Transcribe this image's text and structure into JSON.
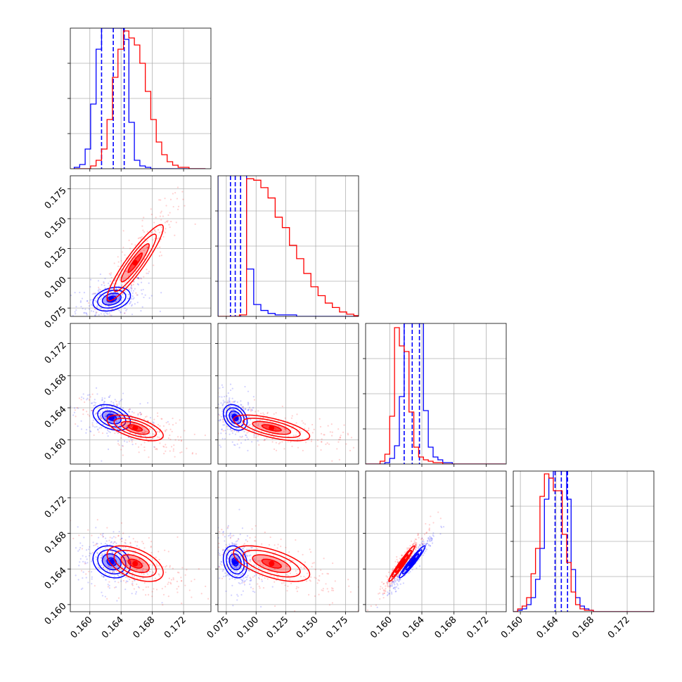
{
  "chart_data": {
    "type": "corner",
    "parameters": 4,
    "grid": true,
    "series": [
      {
        "color": "#0000ff"
      },
      {
        "color": "#ff0000"
      }
    ],
    "params": [
      {
        "range": [
          0.1575,
          0.1755
        ],
        "ticks": [
          0.16,
          0.164,
          0.168,
          0.172
        ],
        "ticklabels": [
          "0.160",
          "0.164",
          "0.168",
          "0.172"
        ]
      },
      {
        "range": [
          0.068,
          0.186
        ],
        "ticks": [
          0.075,
          0.1,
          0.125,
          0.15,
          0.175
        ],
        "ticklabels": [
          "0.075",
          "0.100",
          "0.125",
          "0.150",
          "0.175"
        ]
      },
      {
        "range": [
          0.157,
          0.1745
        ],
        "ticks": [
          0.16,
          0.164,
          0.168,
          0.172
        ],
        "ticklabels": [
          "0.160",
          "0.164",
          "0.168",
          "0.172"
        ]
      },
      {
        "range": [
          0.1592,
          0.175
        ],
        "ticks": [
          0.16,
          0.164,
          0.168,
          0.172
        ],
        "ticklabels": [
          "0.160",
          "0.164",
          "0.168",
          "0.172"
        ]
      }
    ],
    "histograms": [
      {
        "param": 0,
        "bins": [
          0.158,
          0.1587,
          0.1594,
          0.1601,
          0.1608,
          0.1615,
          0.1622,
          0.1629,
          0.1636,
          0.1643,
          0.165,
          0.1657,
          0.1664,
          0.1671,
          0.1678,
          0.1685,
          0.1692,
          0.1699,
          0.1706,
          0.1713,
          0.172,
          0.1727,
          0.1734,
          0.1741,
          0.1748
        ],
        "series": [
          {
            "name": "blue",
            "counts": [
              0.01,
              0.03,
              0.14,
              0.46,
              0.85,
              1.0,
              1.0,
              1.0,
              1.0,
              0.92,
              0.33,
              0.06,
              0.02,
              0.01,
              0,
              0,
              0,
              0,
              0,
              0,
              0,
              0,
              0,
              0
            ],
            "quantiles": [
              0.1615,
              0.163,
              0.1644
            ]
          },
          {
            "name": "red",
            "counts": [
              0,
              0,
              0,
              0.02,
              0.06,
              0.14,
              0.35,
              0.65,
              0.85,
              0.98,
              0.93,
              0.88,
              0.75,
              0.55,
              0.35,
              0.19,
              0.1,
              0.05,
              0.025,
              0.01,
              0.01,
              0,
              0,
              0
            ]
          }
        ],
        "ymax": 1.0
      },
      {
        "param": 1,
        "bins": [
          0.068,
          0.074,
          0.08,
          0.086,
          0.092,
          0.098,
          0.104,
          0.11,
          0.116,
          0.122,
          0.128,
          0.134,
          0.14,
          0.146,
          0.152,
          0.158,
          0.164,
          0.17,
          0.176,
          0.182,
          0.186
        ],
        "series": [
          {
            "name": "blue",
            "counts": [
              1.0,
              1.0,
              1.0,
              1.0,
              0.32,
              0.08,
              0.04,
              0.02,
              0.01,
              0.01,
              0.01,
              0,
              0,
              0,
              0,
              0,
              0,
              0,
              0,
              0
            ],
            "quantiles": [
              0.0785,
              0.0825,
              0.087
            ]
          },
          {
            "name": "red",
            "counts": [
              0,
              0,
              0,
              0.01,
              0.93,
              0.92,
              0.87,
              0.8,
              0.67,
              0.6,
              0.48,
              0.39,
              0.29,
              0.2,
              0.14,
              0.09,
              0.06,
              0.03,
              0.015,
              0.005
            ]
          }
        ],
        "ymax": 0.95
      },
      {
        "param": 2,
        "bins": [
          0.157,
          0.1576,
          0.1582,
          0.1588,
          0.1594,
          0.16,
          0.1606,
          0.1612,
          0.1618,
          0.1624,
          0.163,
          0.1636,
          0.1642,
          0.1648,
          0.1654,
          0.166,
          0.1666,
          0.1672,
          0.1678,
          0.1684,
          0.169,
          0.1696,
          0.1702,
          0.1708,
          0.1714,
          0.172,
          0.1726,
          0.1732,
          0.1738,
          0.1744
        ],
        "series": [
          {
            "name": "blue",
            "counts": [
              0,
              0,
              0,
              0,
              0.01,
              0.04,
              0.13,
              0.48,
              1.0,
              1.0,
              1.0,
              1.0,
              0.38,
              0.12,
              0.05,
              0.03,
              0.01,
              0.01,
              0,
              0,
              0,
              0,
              0,
              0,
              0,
              0,
              0,
              0,
              0
            ],
            "quantiles": [
              0.1618,
              0.1628,
              0.1637
            ]
          },
          {
            "name": "red",
            "counts": [
              0,
              0,
              0,
              0.02,
              0.07,
              0.34,
              0.97,
              0.84,
              0.8,
              0.37,
              0.12,
              0.05,
              0.03,
              0.02,
              0.01,
              0.01,
              0,
              0,
              0,
              0,
              0,
              0,
              0,
              0,
              0,
              0,
              0,
              0,
              0
            ]
          }
        ],
        "ymax": 1.0
      },
      {
        "param": 3,
        "bins": [
          0.1592,
          0.1597,
          0.1602,
          0.1607,
          0.1612,
          0.1617,
          0.1622,
          0.1627,
          0.1632,
          0.1637,
          0.1642,
          0.1647,
          0.1652,
          0.1657,
          0.1662,
          0.1667,
          0.1672,
          0.1677,
          0.1682,
          0.1687,
          0.1692,
          0.1697,
          0.1702,
          0.1707,
          0.1712,
          0.1717,
          0.1722,
          0.1727,
          0.1732,
          0.1737,
          0.1742,
          0.175
        ],
        "series": [
          {
            "name": "blue",
            "counts": [
              0,
              0.01,
              0.02,
              0.05,
              0.1,
              0.23,
              0.45,
              0.8,
              0.95,
              1.0,
              1.0,
              1.0,
              0.8,
              0.3,
              0.1,
              0.04,
              0.02,
              0.01,
              0,
              0,
              0,
              0,
              0,
              0,
              0,
              0,
              0,
              0,
              0,
              0,
              0
            ],
            "quantiles": [
              0.1639,
              0.1646,
              0.1653
            ]
          },
          {
            "name": "red",
            "counts": [
              0,
              0.02,
              0.04,
              0.1,
              0.27,
              0.45,
              0.82,
              0.98,
              0.95,
              0.86,
              0.86,
              0.55,
              0.35,
              0.14,
              0.05,
              0.02,
              0.01,
              0.01,
              0,
              0,
              0,
              0,
              0,
              0,
              0,
              0,
              0,
              0,
              0,
              0,
              0
            ]
          }
        ],
        "ymax": 1.0
      }
    ],
    "joint": [
      {
        "row": 1,
        "col": 0,
        "series": [
          {
            "name": "blue",
            "mean": [
              0.1628,
              0.0825
            ],
            "sd": [
              0.0012,
              0.005
            ],
            "rho": 0.3
          },
          {
            "name": "red",
            "mean": [
              0.1658,
              0.113
            ],
            "sd": [
              0.0018,
              0.016
            ],
            "rho": 0.92
          }
        ]
      },
      {
        "row": 2,
        "col": 0,
        "series": [
          {
            "name": "blue",
            "mean": [
              0.1628,
              0.1628
            ],
            "sd": [
              0.0012,
              0.0008
            ],
            "rho": -0.35
          },
          {
            "name": "red",
            "mean": [
              0.1658,
              0.1615
            ],
            "sd": [
              0.0018,
              0.0008
            ],
            "rho": -0.6
          }
        ]
      },
      {
        "row": 2,
        "col": 1,
        "series": [
          {
            "name": "blue",
            "mean": [
              0.0825,
              0.1628
            ],
            "sd": [
              0.005,
              0.0008
            ],
            "rho": -0.3
          },
          {
            "name": "red",
            "mean": [
              0.113,
              0.1615
            ],
            "sd": [
              0.016,
              0.0008
            ],
            "rho": -0.65
          }
        ]
      },
      {
        "row": 3,
        "col": 0,
        "series": [
          {
            "name": "blue",
            "mean": [
              0.1628,
              0.1648
            ],
            "sd": [
              0.0012,
              0.0009
            ],
            "rho": -0.2
          },
          {
            "name": "red",
            "mean": [
              0.1658,
              0.1646
            ],
            "sd": [
              0.0018,
              0.001
            ],
            "rho": -0.5
          }
        ]
      },
      {
        "row": 3,
        "col": 1,
        "series": [
          {
            "name": "blue",
            "mean": [
              0.0825,
              0.1648
            ],
            "sd": [
              0.005,
              0.0009
            ],
            "rho": -0.2
          },
          {
            "name": "red",
            "mean": [
              0.113,
              0.1646
            ],
            "sd": [
              0.016,
              0.001
            ],
            "rho": -0.6
          }
        ]
      },
      {
        "row": 3,
        "col": 2,
        "series": [
          {
            "name": "blue",
            "mean": [
              0.1628,
              0.1648
            ],
            "sd": [
              0.0008,
              0.0009
            ],
            "rho": 0.96
          },
          {
            "name": "red",
            "mean": [
              0.1615,
              0.1646
            ],
            "sd": [
              0.0008,
              0.001
            ],
            "rho": 0.97
          }
        ]
      }
    ]
  }
}
